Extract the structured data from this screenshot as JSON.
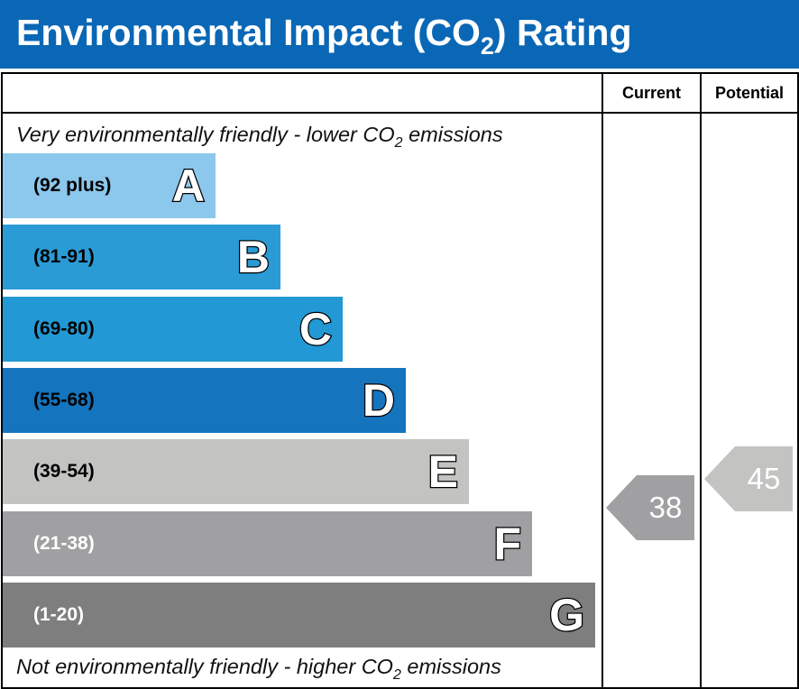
{
  "header": {
    "title_main": "Environmental Impact (CO",
    "title_sub": "2",
    "title_end": ") Rating"
  },
  "columns": {
    "current": "Current",
    "potential": "Potential"
  },
  "captions": {
    "top_main": "Very environmentally friendly - lower CO",
    "top_sub": "2",
    "top_end": " emissions",
    "bottom_main": "Not environmentally friendly - higher CO",
    "bottom_sub": "2",
    "bottom_end": " emissions"
  },
  "chart_data": {
    "type": "bar",
    "categories": [
      "A",
      "B",
      "C",
      "D",
      "E",
      "F",
      "G"
    ],
    "ranges": [
      "(92 plus)",
      "(81-91)",
      "(69-80)",
      "(55-68)",
      "(39-54)",
      "(21-38)",
      "(1-20)"
    ],
    "range_bounds": [
      [
        92,
        100
      ],
      [
        81,
        91
      ],
      [
        69,
        80
      ],
      [
        55,
        68
      ],
      [
        39,
        54
      ],
      [
        21,
        38
      ],
      [
        1,
        20
      ]
    ],
    "colors": [
      "#8cc7ec",
      "#2b9bd6",
      "#2298d4",
      "#1474bd",
      "#c3c3c1",
      "#a0a0a2",
      "#7e7e7e"
    ],
    "range_text_colors": [
      "#000000",
      "#000000",
      "#000000",
      "#000000",
      "#000000",
      "#ffffff",
      "#ffffff"
    ],
    "current": {
      "value": 38,
      "label": "38",
      "band": "F",
      "color": "#a0a0a2"
    },
    "potential": {
      "value": 45,
      "label": "45",
      "band": "E",
      "color": "#c3c3c1"
    }
  }
}
